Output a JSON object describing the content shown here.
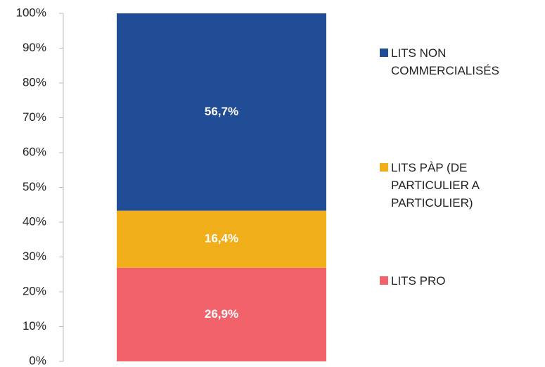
{
  "chart_data": {
    "type": "stacked_bar",
    "categories": [
      null
    ],
    "series": [
      {
        "name": "LITS PRO",
        "color": "#f2626b",
        "values": [
          26.9
        ],
        "value_labels": [
          "26,9%"
        ]
      },
      {
        "name": "LITS PÀP (DE PARTICULIER A PARTICULIER)",
        "color": "#f0ae1b",
        "values": [
          16.4
        ],
        "value_labels": [
          "16,4%"
        ]
      },
      {
        "name": "LITS NON COMMERCIALISÉS",
        "color": "#214c96",
        "values": [
          56.7
        ],
        "value_labels": [
          "56,7%"
        ]
      }
    ],
    "ylim": [
      0,
      100
    ],
    "yticks": [
      {
        "value": 0,
        "label": "0%"
      },
      {
        "value": 10,
        "label": "10%"
      },
      {
        "value": 20,
        "label": "20%"
      },
      {
        "value": 30,
        "label": "30%"
      },
      {
        "value": 40,
        "label": "40%"
      },
      {
        "value": 50,
        "label": "50%"
      },
      {
        "value": 60,
        "label": "60%"
      },
      {
        "value": 70,
        "label": "70%"
      },
      {
        "value": 80,
        "label": "80%"
      },
      {
        "value": 90,
        "label": "90%"
      },
      {
        "value": 100,
        "label": "100%"
      }
    ],
    "legend": "right"
  }
}
